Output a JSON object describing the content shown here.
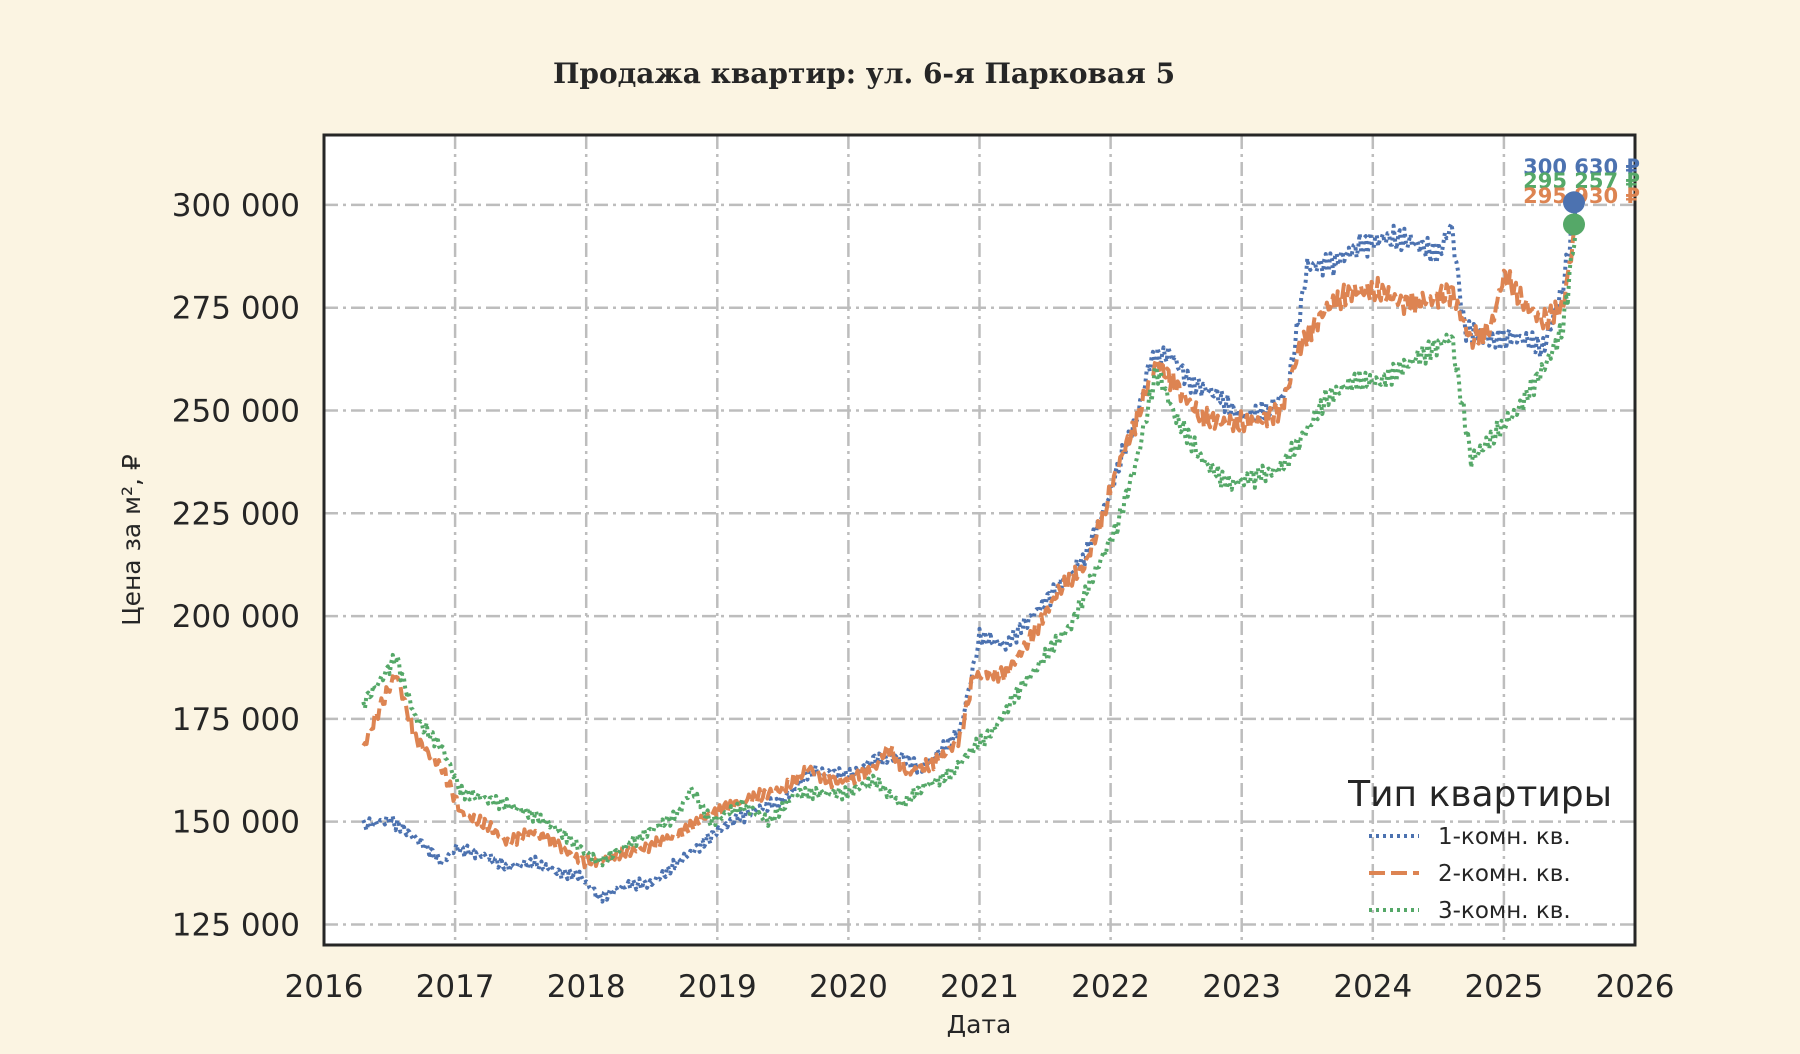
{
  "chart_data": {
    "type": "line",
    "title": "Продажа квартир: ул. 6-я Парковая 5",
    "xlabel": "Дата",
    "ylabel": "Цена за м², ₽",
    "xlim": [
      2016,
      2026
    ],
    "ylim": [
      120000,
      317000
    ],
    "x_ticks": [
      2016,
      2017,
      2018,
      2019,
      2020,
      2021,
      2022,
      2023,
      2024,
      2025,
      2026
    ],
    "y_ticks": [
      125000,
      150000,
      175000,
      200000,
      225000,
      250000,
      275000,
      300000
    ],
    "y_tick_labels": [
      "125 000",
      "150 000",
      "175 000",
      "200 000",
      "225 000",
      "250 000",
      "275 000",
      "300 000"
    ],
    "grid": true,
    "legend_title": "Тип квартиры",
    "legend_position": "bottom-right",
    "series": [
      {
        "name": "1-комн. кв.",
        "color": "#4c72b0",
        "dash": "dotted",
        "end_label": "300 630 ₽",
        "end_value": 300630,
        "points": [
          [
            2016.3,
            149000
          ],
          [
            2016.5,
            150500
          ],
          [
            2016.7,
            146000
          ],
          [
            2016.9,
            140000
          ],
          [
            2017.0,
            143500
          ],
          [
            2017.2,
            142000
          ],
          [
            2017.4,
            139000
          ],
          [
            2017.6,
            140000
          ],
          [
            2017.8,
            137500
          ],
          [
            2017.95,
            137000
          ],
          [
            2018.1,
            131500
          ],
          [
            2018.3,
            134500
          ],
          [
            2018.5,
            135000
          ],
          [
            2018.7,
            140000
          ],
          [
            2018.9,
            145000
          ],
          [
            2019.1,
            150000
          ],
          [
            2019.3,
            153000
          ],
          [
            2019.5,
            155000
          ],
          [
            2019.7,
            162000
          ],
          [
            2019.85,
            162000
          ],
          [
            2020.0,
            161000
          ],
          [
            2020.2,
            165000
          ],
          [
            2020.4,
            166000
          ],
          [
            2020.55,
            163000
          ],
          [
            2020.7,
            167000
          ],
          [
            2020.85,
            172000
          ],
          [
            2020.95,
            187000
          ],
          [
            2021.0,
            195000
          ],
          [
            2021.2,
            193000
          ],
          [
            2021.4,
            200000
          ],
          [
            2021.6,
            207000
          ],
          [
            2021.8,
            214000
          ],
          [
            2021.95,
            226000
          ],
          [
            2022.1,
            240000
          ],
          [
            2022.2,
            248000
          ],
          [
            2022.3,
            262000
          ],
          [
            2022.45,
            264000
          ],
          [
            2022.6,
            257000
          ],
          [
            2022.8,
            254000
          ],
          [
            2023.0,
            248000
          ],
          [
            2023.2,
            250000
          ],
          [
            2023.35,
            255000
          ],
          [
            2023.5,
            285000
          ],
          [
            2023.7,
            286000
          ],
          [
            2023.9,
            290000
          ],
          [
            2024.1,
            292000
          ],
          [
            2024.3,
            291000
          ],
          [
            2024.5,
            288000
          ],
          [
            2024.6,
            295000
          ],
          [
            2024.7,
            270000
          ],
          [
            2024.9,
            267000
          ],
          [
            2025.1,
            268000
          ],
          [
            2025.3,
            265000
          ],
          [
            2025.45,
            280000
          ],
          [
            2025.55,
            300630
          ]
        ]
      },
      {
        "name": "2-комн. кв.",
        "color": "#dd8452",
        "dash": "dashed",
        "end_label": "295 930 ₽",
        "end_value": 295930,
        "points": [
          [
            2016.3,
            168000
          ],
          [
            2016.4,
            176000
          ],
          [
            2016.55,
            186000
          ],
          [
            2016.7,
            170000
          ],
          [
            2016.9,
            163000
          ],
          [
            2017.05,
            152000
          ],
          [
            2017.25,
            149000
          ],
          [
            2017.4,
            145000
          ],
          [
            2017.6,
            147500
          ],
          [
            2017.8,
            144000
          ],
          [
            2017.95,
            140500
          ],
          [
            2018.1,
            140500
          ],
          [
            2018.3,
            142500
          ],
          [
            2018.5,
            144000
          ],
          [
            2018.7,
            147000
          ],
          [
            2018.9,
            151000
          ],
          [
            2019.1,
            154000
          ],
          [
            2019.3,
            156000
          ],
          [
            2019.5,
            158000
          ],
          [
            2019.7,
            163000
          ],
          [
            2019.85,
            160000
          ],
          [
            2020.0,
            160000
          ],
          [
            2020.2,
            163000
          ],
          [
            2020.3,
            168000
          ],
          [
            2020.45,
            162000
          ],
          [
            2020.65,
            164000
          ],
          [
            2020.85,
            170000
          ],
          [
            2020.95,
            185000
          ],
          [
            2021.05,
            186000
          ],
          [
            2021.2,
            186000
          ],
          [
            2021.4,
            195000
          ],
          [
            2021.6,
            206000
          ],
          [
            2021.8,
            212000
          ],
          [
            2021.95,
            225000
          ],
          [
            2022.05,
            236000
          ],
          [
            2022.2,
            248000
          ],
          [
            2022.35,
            262000
          ],
          [
            2022.5,
            256000
          ],
          [
            2022.7,
            248000
          ],
          [
            2022.9,
            247000
          ],
          [
            2023.1,
            247000
          ],
          [
            2023.3,
            250000
          ],
          [
            2023.45,
            266000
          ],
          [
            2023.65,
            275000
          ],
          [
            2023.85,
            279000
          ],
          [
            2024.05,
            279000
          ],
          [
            2024.25,
            276000
          ],
          [
            2024.45,
            277000
          ],
          [
            2024.6,
            279000
          ],
          [
            2024.75,
            267000
          ],
          [
            2024.9,
            270000
          ],
          [
            2025.0,
            283000
          ],
          [
            2025.15,
            276000
          ],
          [
            2025.3,
            272000
          ],
          [
            2025.45,
            275000
          ],
          [
            2025.55,
            295930
          ]
        ]
      },
      {
        "name": "3-комн. кв.",
        "color": "#55a868",
        "dash": "dotted",
        "end_label": "295 257 ₽",
        "end_value": 295257,
        "points": [
          [
            2016.3,
            179000
          ],
          [
            2016.4,
            183000
          ],
          [
            2016.55,
            190000
          ],
          [
            2016.7,
            175000
          ],
          [
            2016.9,
            168000
          ],
          [
            2017.05,
            157000
          ],
          [
            2017.3,
            155000
          ],
          [
            2017.5,
            153000
          ],
          [
            2017.7,
            150000
          ],
          [
            2017.9,
            145000
          ],
          [
            2018.1,
            140000
          ],
          [
            2018.3,
            144000
          ],
          [
            2018.5,
            148000
          ],
          [
            2018.7,
            152000
          ],
          [
            2018.8,
            158000
          ],
          [
            2018.95,
            150000
          ],
          [
            2019.2,
            154000
          ],
          [
            2019.4,
            150000
          ],
          [
            2019.6,
            157000
          ],
          [
            2019.8,
            157000
          ],
          [
            2020.0,
            157000
          ],
          [
            2020.2,
            160000
          ],
          [
            2020.4,
            154000
          ],
          [
            2020.6,
            159000
          ],
          [
            2020.8,
            162000
          ],
          [
            2020.95,
            168000
          ],
          [
            2021.1,
            172000
          ],
          [
            2021.3,
            182000
          ],
          [
            2021.5,
            190000
          ],
          [
            2021.7,
            198000
          ],
          [
            2021.9,
            212000
          ],
          [
            2022.05,
            222000
          ],
          [
            2022.2,
            238000
          ],
          [
            2022.35,
            260000
          ],
          [
            2022.5,
            248000
          ],
          [
            2022.7,
            238000
          ],
          [
            2022.9,
            232000
          ],
          [
            2023.1,
            234000
          ],
          [
            2023.3,
            236000
          ],
          [
            2023.45,
            243000
          ],
          [
            2023.65,
            253000
          ],
          [
            2023.85,
            257000
          ],
          [
            2024.05,
            257000
          ],
          [
            2024.25,
            261000
          ],
          [
            2024.45,
            265000
          ],
          [
            2024.6,
            268000
          ],
          [
            2024.75,
            238000
          ],
          [
            2024.9,
            243000
          ],
          [
            2025.1,
            250000
          ],
          [
            2025.3,
            260000
          ],
          [
            2025.45,
            270000
          ],
          [
            2025.55,
            295257
          ]
        ]
      }
    ]
  }
}
